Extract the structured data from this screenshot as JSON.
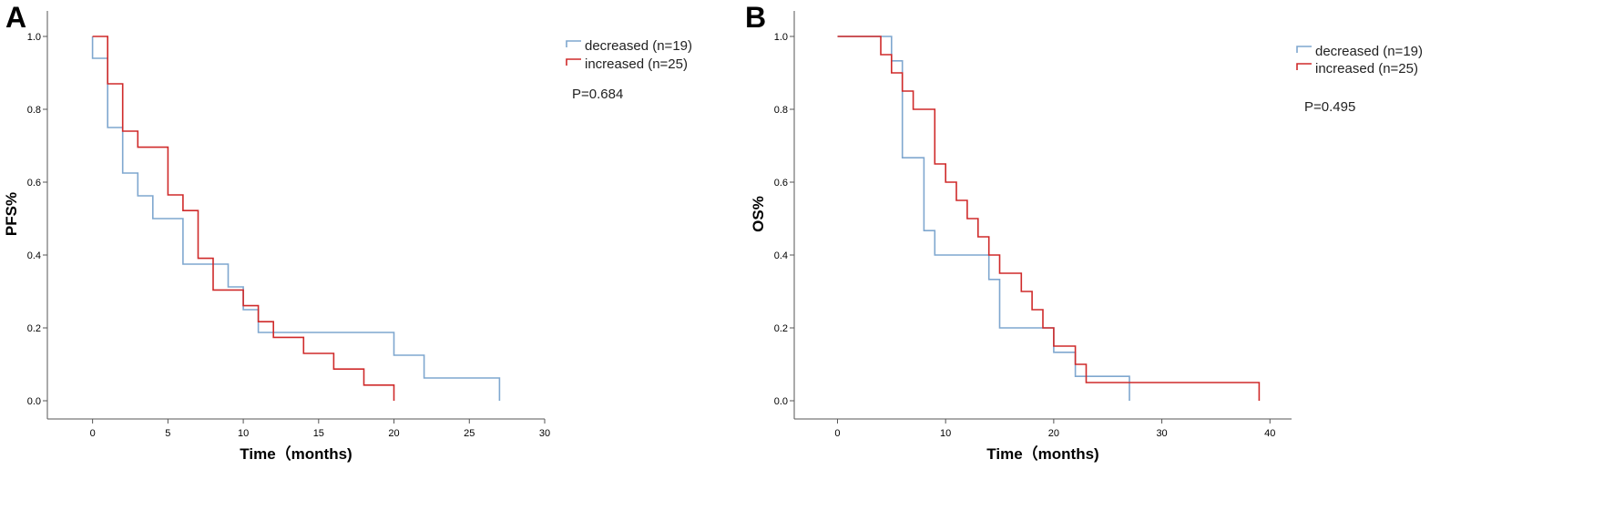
{
  "chart_data": [
    {
      "type": "line",
      "step": true,
      "panel_label": "A",
      "xlabel": "Time（months)",
      "ylabel": "PFS%",
      "xlim": [
        -3,
        30
      ],
      "ylim": [
        -0.05,
        1.07
      ],
      "xticks": [
        0,
        5,
        10,
        15,
        20,
        25,
        30
      ],
      "yticks": [
        "0.0",
        "0.2",
        "0.4",
        "0.6",
        "0.8",
        "1.0"
      ],
      "legend_position": "top-right",
      "annotation": "P=0.684",
      "series": [
        {
          "name": "decreased (n=19)",
          "color": "#7fa7cf",
          "x": [
            0,
            0,
            1,
            1,
            2,
            2,
            3,
            3,
            4,
            4,
            6,
            6,
            9,
            9,
            10,
            10,
            11,
            11,
            20,
            20,
            22,
            22,
            27,
            27
          ],
          "y": [
            1.0,
            0.94,
            0.94,
            0.75,
            0.75,
            0.625,
            0.625,
            0.5625,
            0.5625,
            0.5,
            0.5,
            0.375,
            0.375,
            0.3125,
            0.3125,
            0.25,
            0.25,
            0.1875,
            0.1875,
            0.125,
            0.125,
            0.0625,
            0.0625,
            0.0
          ]
        },
        {
          "name": "increased (n=25)",
          "color": "#cf2a2a",
          "x": [
            0,
            1,
            1,
            2,
            2,
            3,
            3,
            5,
            5,
            6,
            6,
            7,
            7,
            8,
            8,
            10,
            10,
            11,
            11,
            12,
            12,
            14,
            14,
            16,
            16,
            18,
            18,
            20,
            20
          ],
          "y": [
            1.0,
            1.0,
            0.87,
            0.87,
            0.74,
            0.74,
            0.696,
            0.696,
            0.565,
            0.565,
            0.522,
            0.522,
            0.391,
            0.391,
            0.304,
            0.304,
            0.261,
            0.261,
            0.217,
            0.217,
            0.174,
            0.174,
            0.13,
            0.13,
            0.087,
            0.087,
            0.043,
            0.043,
            0.0
          ]
        }
      ]
    },
    {
      "type": "line",
      "step": true,
      "panel_label": "B",
      "xlabel": "Time（months)",
      "ylabel": "OS%",
      "xlim": [
        -4,
        42
      ],
      "ylim": [
        -0.05,
        1.07
      ],
      "xticks": [
        0,
        10,
        20,
        30,
        40
      ],
      "yticks": [
        "0.0",
        "0.2",
        "0.4",
        "0.6",
        "0.8",
        "1.0"
      ],
      "legend_position": "top-right",
      "annotation": "P=0.495",
      "series": [
        {
          "name": "decreased (n=19)",
          "color": "#7fa7cf",
          "x": [
            0,
            5,
            5,
            6,
            6,
            8,
            8,
            9,
            9,
            14,
            14,
            15,
            15,
            20,
            20,
            22,
            22,
            27,
            27
          ],
          "y": [
            1.0,
            1.0,
            0.933,
            0.933,
            0.667,
            0.667,
            0.467,
            0.467,
            0.4,
            0.4,
            0.333,
            0.333,
            0.2,
            0.2,
            0.133,
            0.133,
            0.067,
            0.067,
            0.0
          ]
        },
        {
          "name": "increased (n=25)",
          "color": "#cf2a2a",
          "x": [
            0,
            4,
            4,
            5,
            5,
            6,
            6,
            7,
            7,
            9,
            9,
            10,
            10,
            11,
            11,
            12,
            12,
            13,
            13,
            14,
            14,
            15,
            15,
            17,
            17,
            18,
            18,
            19,
            19,
            20,
            20,
            22,
            22,
            23,
            23,
            39,
            39
          ],
          "y": [
            1.0,
            1.0,
            0.95,
            0.95,
            0.9,
            0.9,
            0.85,
            0.85,
            0.8,
            0.8,
            0.65,
            0.65,
            0.6,
            0.6,
            0.55,
            0.55,
            0.5,
            0.5,
            0.45,
            0.45,
            0.4,
            0.4,
            0.35,
            0.35,
            0.3,
            0.3,
            0.25,
            0.25,
            0.2,
            0.2,
            0.15,
            0.15,
            0.1,
            0.1,
            0.05,
            0.05,
            0.0
          ]
        }
      ]
    }
  ]
}
